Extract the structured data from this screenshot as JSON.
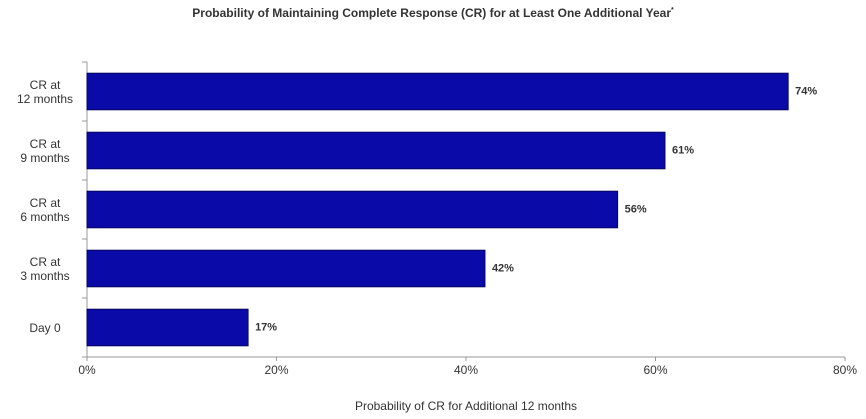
{
  "chart_data": {
    "type": "hbar",
    "title": "Probability of Maintaining Complete Response (CR) for at Least One Additional Year",
    "title_marker": "*",
    "x_label": "Probability of CR for Additional 12 months",
    "categories": [
      "CR at\n12 months",
      "CR at\n9 months",
      "CR at\n6 months",
      "CR at\n3 months",
      "Day 0"
    ],
    "values": [
      74,
      61,
      56,
      42,
      17
    ],
    "value_labels": [
      "74%",
      "61%",
      "56%",
      "42%",
      "17%"
    ],
    "color": "#0a0aa8",
    "xlim": [
      0,
      80
    ],
    "xticks": [
      {
        "value": 0,
        "label": "0%"
      },
      {
        "value": 20,
        "label": "20%"
      },
      {
        "value": 40,
        "label": "40%"
      },
      {
        "value": 60,
        "label": "60%"
      },
      {
        "value": 80,
        "label": "80%"
      }
    ],
    "grid": false
  }
}
